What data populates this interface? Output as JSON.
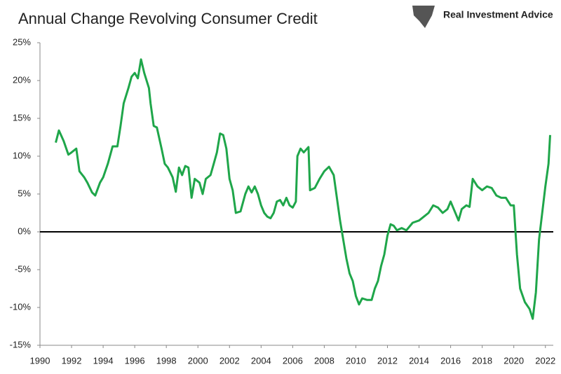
{
  "chart_data": {
    "type": "line",
    "title": "Annual Change Revolving Consumer Credit",
    "brand": "Real Investment Advice",
    "x": [
      1991.0,
      1991.2,
      1991.5,
      1991.8,
      1992.0,
      1992.3,
      1992.5,
      1992.8,
      1993.0,
      1993.3,
      1993.5,
      1993.8,
      1994.0,
      1994.3,
      1994.6,
      1994.9,
      1995.1,
      1995.3,
      1995.6,
      1995.8,
      1996.0,
      1996.2,
      1996.4,
      1996.6,
      1996.9,
      1997.0,
      1997.2,
      1997.4,
      1997.7,
      1997.9,
      1998.1,
      1998.4,
      1998.6,
      1998.8,
      1999.0,
      1999.2,
      1999.4,
      1999.6,
      1999.8,
      2000.1,
      2000.3,
      2000.5,
      2000.8,
      2001.0,
      2001.2,
      2001.4,
      2001.6,
      2001.8,
      2002.0,
      2002.2,
      2002.4,
      2002.7,
      2003.0,
      2003.2,
      2003.4,
      2003.6,
      2003.8,
      2004.0,
      2004.2,
      2004.4,
      2004.6,
      2004.8,
      2005.0,
      2005.2,
      2005.4,
      2005.6,
      2005.8,
      2006.0,
      2006.2,
      2006.3,
      2006.5,
      2006.7,
      2007.0,
      2007.1,
      2007.4,
      2007.7,
      2008.0,
      2008.3,
      2008.6,
      2008.8,
      2009.0,
      2009.2,
      2009.4,
      2009.6,
      2009.8,
      2010.0,
      2010.2,
      2010.4,
      2010.7,
      2011.0,
      2011.2,
      2011.4,
      2011.6,
      2011.8,
      2012.0,
      2012.2,
      2012.4,
      2012.6,
      2012.9,
      2013.2,
      2013.6,
      2014.0,
      2014.3,
      2014.6,
      2014.9,
      2015.2,
      2015.5,
      2015.8,
      2016.0,
      2016.2,
      2016.5,
      2016.7,
      2017.0,
      2017.2,
      2017.4,
      2017.7,
      2018.0,
      2018.3,
      2018.6,
      2018.9,
      2019.2,
      2019.5,
      2019.8,
      2020.0,
      2020.2,
      2020.4,
      2020.7,
      2021.0,
      2021.2,
      2021.4,
      2021.6,
      2021.8,
      2022.0,
      2022.2,
      2022.3
    ],
    "series": [
      {
        "color": "#1fa64a",
        "values": [
          11.8,
          13.4,
          12,
          10.2,
          10.5,
          11,
          8,
          7.2,
          6.5,
          5.2,
          4.8,
          6.5,
          7.2,
          9,
          11.3,
          11.3,
          14,
          17,
          19,
          20.5,
          21,
          20.3,
          22.8,
          21,
          19,
          17,
          14,
          13.8,
          11,
          9,
          8.5,
          7.2,
          5.3,
          8.5,
          7.5,
          8.7,
          8.5,
          4.5,
          7,
          6.5,
          5,
          7,
          7.5,
          9,
          10.5,
          13,
          12.8,
          11,
          7,
          5.5,
          2.5,
          2.7,
          5,
          6,
          5.2,
          6,
          5,
          3.5,
          2.5,
          2,
          1.8,
          2.5,
          4,
          4.2,
          3.5,
          4.5,
          3.5,
          3.2,
          4,
          10,
          11,
          10.5,
          11.2,
          5.5,
          5.8,
          7,
          8,
          8.6,
          7.5,
          4.5,
          1.5,
          -1,
          -3.5,
          -5.5,
          -6.5,
          -8.5,
          -9.6,
          -8.8,
          -9,
          -9,
          -7.5,
          -6.5,
          -4.5,
          -3,
          -0.5,
          1,
          0.8,
          0.2,
          0.5,
          0.2,
          1.2,
          1.5,
          2,
          2.5,
          3.5,
          3.2,
          2.5,
          3,
          4,
          3,
          1.5,
          3,
          3.5,
          3.3,
          7,
          6,
          5.5,
          6,
          5.8,
          4.8,
          4.5,
          4.5,
          3.5,
          3.5,
          -3,
          -7.5,
          -9.3,
          -10.2,
          -11.5,
          -8,
          -1,
          2.5,
          6,
          9,
          12.8
        ]
      }
    ],
    "xlim": [
      1990,
      2022.5
    ],
    "xticks": [
      1990,
      1992,
      1994,
      1996,
      1998,
      2000,
      2002,
      2004,
      2006,
      2008,
      2010,
      2012,
      2014,
      2016,
      2018,
      2020,
      2022
    ],
    "ylim": [
      -15,
      25
    ],
    "yticks": [
      {
        "value": -15,
        "label": "-15%"
      },
      {
        "value": -10,
        "label": "-10%"
      },
      {
        "value": -5,
        "label": "-5%"
      },
      {
        "value": 0,
        "label": "0%"
      },
      {
        "value": 5,
        "label": "5%"
      },
      {
        "value": 10,
        "label": "10%"
      },
      {
        "value": 15,
        "label": "15%"
      },
      {
        "value": 20,
        "label": "20%"
      },
      {
        "value": 25,
        "label": "25%"
      }
    ],
    "zero_line": true
  }
}
